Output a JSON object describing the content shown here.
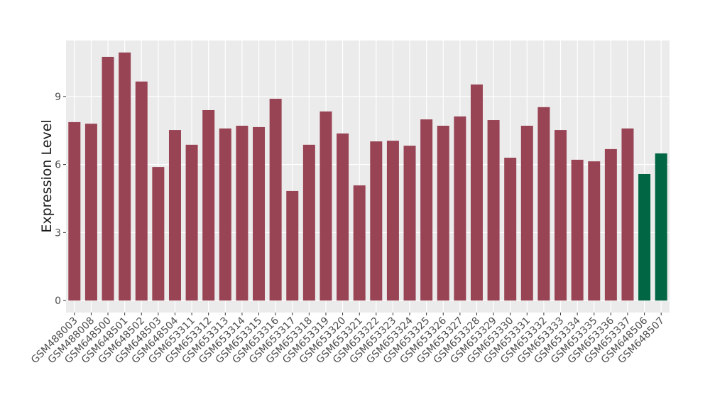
{
  "chart_data": {
    "type": "bar",
    "y_label": "Expression Level",
    "categories": [
      "GSM488003",
      "GSM488008",
      "GSM648500",
      "GSM648501",
      "GSM648502",
      "GSM648503",
      "GSM648504",
      "GSM653311",
      "GSM653312",
      "GSM653313",
      "GSM653314",
      "GSM653315",
      "GSM653316",
      "GSM653317",
      "GSM653318",
      "GSM653319",
      "GSM653320",
      "GSM653321",
      "GSM653322",
      "GSM653323",
      "GSM653324",
      "GSM653325",
      "GSM653326",
      "GSM653327",
      "GSM653328",
      "GSM653329",
      "GSM653330",
      "GSM653331",
      "GSM653332",
      "GSM653333",
      "GSM653334",
      "GSM653335",
      "GSM653336",
      "GSM653337",
      "GSM648506",
      "GSM648507"
    ],
    "values": [
      7.87,
      7.8,
      10.75,
      10.94,
      9.66,
      5.89,
      7.52,
      6.87,
      8.4,
      7.59,
      7.71,
      7.65,
      8.9,
      4.83,
      6.87,
      8.34,
      7.37,
      5.08,
      7.02,
      7.05,
      6.83,
      7.99,
      7.71,
      8.12,
      9.53,
      7.96,
      6.3,
      7.71,
      8.53,
      7.52,
      6.21,
      6.14,
      6.68,
      7.59,
      5.58,
      6.49
    ],
    "colors": [
      "#994455",
      "#994455",
      "#994455",
      "#994455",
      "#994455",
      "#994455",
      "#994455",
      "#994455",
      "#994455",
      "#994455",
      "#994455",
      "#994455",
      "#994455",
      "#994455",
      "#994455",
      "#994455",
      "#994455",
      "#994455",
      "#994455",
      "#994455",
      "#994455",
      "#994455",
      "#994455",
      "#994455",
      "#994455",
      "#994455",
      "#994455",
      "#994455",
      "#994455",
      "#994455",
      "#994455",
      "#994455",
      "#994455",
      "#994455",
      "#006644",
      "#006644"
    ],
    "ylim": [
      -0.53,
      11.47
    ],
    "yticks": [
      0,
      3,
      6,
      9
    ],
    "grid": true
  }
}
